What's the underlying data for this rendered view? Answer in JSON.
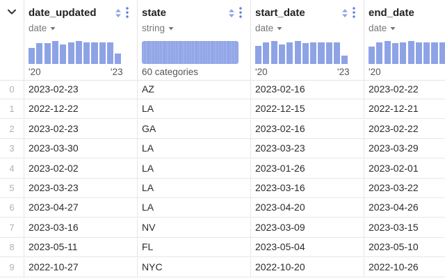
{
  "columns": [
    {
      "id": "date_updated",
      "name": "date_updated",
      "type": "date",
      "axis_start": "'20",
      "axis_end": "'23",
      "histogram": [
        0.7,
        0.9,
        0.9,
        1.0,
        0.85,
        0.95,
        1.0,
        0.95,
        0.95,
        0.95,
        0.95,
        0.45
      ]
    },
    {
      "id": "state",
      "name": "state",
      "type": "string",
      "summary": "60 categories"
    },
    {
      "id": "start_date",
      "name": "start_date",
      "type": "date",
      "axis_start": "'20",
      "axis_end": "'23",
      "histogram": [
        0.8,
        0.95,
        1.0,
        0.85,
        0.95,
        1.0,
        0.9,
        0.95,
        0.95,
        0.95,
        0.95,
        0.35
      ]
    },
    {
      "id": "end_date",
      "name": "end_date",
      "type": "date",
      "axis_start": "'20",
      "histogram": [
        0.75,
        0.95,
        1.0,
        0.9,
        0.95,
        1.0,
        0.95,
        0.95,
        0.95,
        0.95
      ]
    }
  ],
  "rows": [
    {
      "index": "0",
      "date_updated": "2023-02-23",
      "state": "AZ",
      "start_date": "2023-02-16",
      "end_date": "2023-02-22"
    },
    {
      "index": "1",
      "date_updated": "2022-12-22",
      "state": "LA",
      "start_date": "2022-12-15",
      "end_date": "2022-12-21"
    },
    {
      "index": "2",
      "date_updated": "2023-02-23",
      "state": "GA",
      "start_date": "2023-02-16",
      "end_date": "2023-02-22"
    },
    {
      "index": "3",
      "date_updated": "2023-03-30",
      "state": "LA",
      "start_date": "2023-03-23",
      "end_date": "2023-03-29"
    },
    {
      "index": "4",
      "date_updated": "2023-02-02",
      "state": "LA",
      "start_date": "2023-01-26",
      "end_date": "2023-02-01"
    },
    {
      "index": "5",
      "date_updated": "2023-03-23",
      "state": "LA",
      "start_date": "2023-03-16",
      "end_date": "2023-03-22"
    },
    {
      "index": "6",
      "date_updated": "2023-04-27",
      "state": "LA",
      "start_date": "2023-04-20",
      "end_date": "2023-04-26"
    },
    {
      "index": "7",
      "date_updated": "2023-03-16",
      "state": "NV",
      "start_date": "2023-03-09",
      "end_date": "2023-03-15"
    },
    {
      "index": "8",
      "date_updated": "2023-05-11",
      "state": "FL",
      "start_date": "2023-05-04",
      "end_date": "2023-05-10"
    },
    {
      "index": "9",
      "date_updated": "2022-10-27",
      "state": "NYC",
      "start_date": "2022-10-20",
      "end_date": "2022-10-26"
    }
  ],
  "colors": {
    "histogram_bar": "#8ea3e6",
    "sort_icon": "#8ea3e6",
    "menu_icon": "#5b7fe0"
  }
}
